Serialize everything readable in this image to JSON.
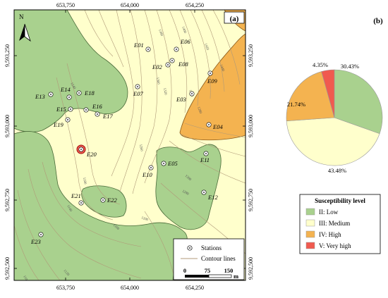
{
  "panel_a": {
    "label": "(a)",
    "north": "N",
    "top_ticks": [
      "653,750",
      "654,000",
      "654,250"
    ],
    "bottom_ticks": [
      "653,750",
      "654,000",
      "654,250"
    ],
    "left_ticks": [
      "9,593,250",
      "9,593,000",
      "9,592,750",
      "9,592,500"
    ],
    "right_ticks": [
      "9,593,250",
      "9,593,000",
      "9,592,750",
      "9,592,500"
    ],
    "stations": [
      {
        "name": "E01"
      },
      {
        "name": "E02"
      },
      {
        "name": "E03"
      },
      {
        "name": "E04"
      },
      {
        "name": "E05"
      },
      {
        "name": "E06"
      },
      {
        "name": "E07"
      },
      {
        "name": "E08"
      },
      {
        "name": "E09"
      },
      {
        "name": "E10"
      },
      {
        "name": "E11"
      },
      {
        "name": "E12"
      },
      {
        "name": "E13"
      },
      {
        "name": "E14"
      },
      {
        "name": "E15"
      },
      {
        "name": "E16"
      },
      {
        "name": "E17"
      },
      {
        "name": "E18"
      },
      {
        "name": "E19"
      },
      {
        "name": "E20"
      },
      {
        "name": "E21"
      },
      {
        "name": "E22"
      },
      {
        "name": "E23"
      }
    ],
    "contour_labels": [
      "1380",
      "1400",
      "1420",
      "1440",
      "1360",
      "1320",
      "1300",
      "1280",
      "1260",
      "1240",
      "1200",
      "1180",
      "1160",
      "1140",
      "1120",
      "1100",
      "1300",
      "1280"
    ],
    "legend": {
      "stations": "Stations",
      "contours": "Contour lines",
      "scale_ticks": [
        "0",
        "75",
        "150"
      ],
      "scale_unit": "m"
    }
  },
  "panel_b": {
    "label": "(b)",
    "legend_title": "Susceptibility level",
    "chart_data": {
      "type": "pie",
      "slices": [
        {
          "name": "II: Low",
          "value": 30.43,
          "label": "30.43%",
          "color": "#a9d18e"
        },
        {
          "name": "III: Medium",
          "value": 43.48,
          "label": "43.48%",
          "color": "#ffffcc"
        },
        {
          "name": "IV: High",
          "value": 21.74,
          "label": "21.74%",
          "color": "#f4b350"
        },
        {
          "name": "V: Very high",
          "value": 4.35,
          "label": "4.35%",
          "color": "#f05a4f"
        }
      ]
    }
  },
  "colors": {
    "low": "#a9d18e",
    "medium": "#ffffcc",
    "high": "#f4b350",
    "very_high": "#f05a4f",
    "contour": "#b09a78"
  }
}
